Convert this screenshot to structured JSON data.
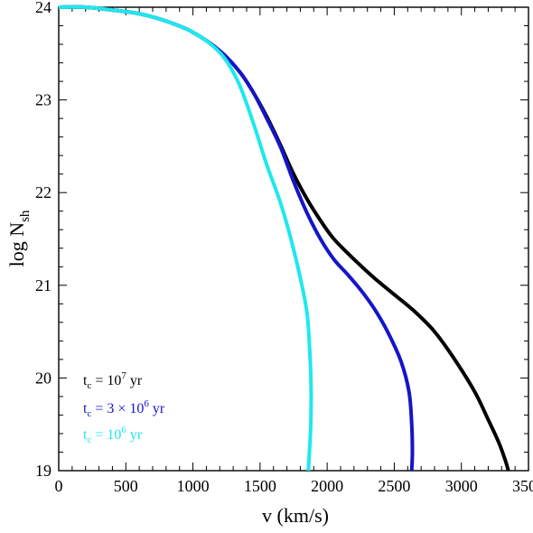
{
  "chart_data": {
    "type": "line",
    "xlabel": "v (km/s)",
    "ylabel": {
      "main": "log N",
      "sub": "sh"
    },
    "xlim": [
      0,
      3500
    ],
    "ylim": [
      19,
      24
    ],
    "x_ticks": [
      "0",
      "500",
      "1000",
      "1500",
      "2000",
      "2500",
      "3000",
      "3500"
    ],
    "y_ticks": [
      "19",
      "20",
      "21",
      "22",
      "23",
      "24"
    ],
    "grid": false,
    "legend_placement": "bottom-left",
    "series": [
      {
        "name": "t_c = 10^7 yr",
        "legend": {
          "pre": "t",
          "sub": "c",
          "mid": " = 10",
          "sup": "7",
          "post": " yr"
        },
        "color": "#000000",
        "points": [
          [
            0,
            24.0
          ],
          [
            200,
            24.0
          ],
          [
            400,
            23.97
          ],
          [
            600,
            23.93
          ],
          [
            800,
            23.85
          ],
          [
            1000,
            23.73
          ],
          [
            1200,
            23.53
          ],
          [
            1350,
            23.3
          ],
          [
            1450,
            23.08
          ],
          [
            1550,
            22.82
          ],
          [
            1650,
            22.52
          ],
          [
            1750,
            22.2
          ],
          [
            1850,
            21.93
          ],
          [
            1950,
            21.7
          ],
          [
            2050,
            21.5
          ],
          [
            2200,
            21.28
          ],
          [
            2350,
            21.08
          ],
          [
            2500,
            20.9
          ],
          [
            2650,
            20.72
          ],
          [
            2800,
            20.5
          ],
          [
            2950,
            20.2
          ],
          [
            3100,
            19.85
          ],
          [
            3200,
            19.55
          ],
          [
            3280,
            19.3
          ],
          [
            3330,
            19.1
          ],
          [
            3350,
            19.0
          ]
        ]
      },
      {
        "name": "t_c = 3 × 10^6 yr",
        "legend": {
          "pre": "t",
          "sub": "c",
          "mid": " = 3 × 10",
          "sup": "6",
          "post": " yr"
        },
        "color": "#1515c8",
        "points": [
          [
            0,
            24.0
          ],
          [
            200,
            24.0
          ],
          [
            400,
            23.97
          ],
          [
            600,
            23.93
          ],
          [
            800,
            23.85
          ],
          [
            1000,
            23.73
          ],
          [
            1200,
            23.53
          ],
          [
            1350,
            23.3
          ],
          [
            1450,
            23.08
          ],
          [
            1550,
            22.8
          ],
          [
            1650,
            22.5
          ],
          [
            1750,
            22.12
          ],
          [
            1850,
            21.78
          ],
          [
            1950,
            21.5
          ],
          [
            2050,
            21.28
          ],
          [
            2150,
            21.12
          ],
          [
            2250,
            20.95
          ],
          [
            2350,
            20.75
          ],
          [
            2450,
            20.5
          ],
          [
            2550,
            20.18
          ],
          [
            2610,
            19.85
          ],
          [
            2630,
            19.5
          ],
          [
            2635,
            19.2
          ],
          [
            2630,
            19.0
          ]
        ]
      },
      {
        "name": "t_c = 10^6 yr",
        "legend": {
          "pre": "t",
          "sub": "c",
          "mid": " = 10",
          "sup": "6",
          "post": " yr"
        },
        "color": "#1ee8ee",
        "points": [
          [
            0,
            24.0
          ],
          [
            200,
            24.0
          ],
          [
            400,
            23.97
          ],
          [
            600,
            23.93
          ],
          [
            800,
            23.85
          ],
          [
            1000,
            23.73
          ],
          [
            1150,
            23.58
          ],
          [
            1250,
            23.42
          ],
          [
            1350,
            23.15
          ],
          [
            1450,
            22.75
          ],
          [
            1550,
            22.3
          ],
          [
            1650,
            21.9
          ],
          [
            1730,
            21.5
          ],
          [
            1800,
            21.08
          ],
          [
            1850,
            20.7
          ],
          [
            1870,
            20.3
          ],
          [
            1880,
            19.9
          ],
          [
            1878,
            19.5
          ],
          [
            1868,
            19.2
          ],
          [
            1860,
            19.0
          ]
        ]
      }
    ]
  }
}
